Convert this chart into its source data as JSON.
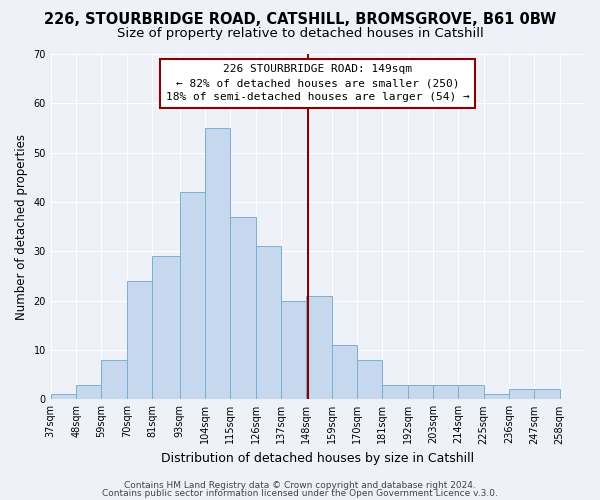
{
  "title": "226, STOURBRIDGE ROAD, CATSHILL, BROMSGROVE, B61 0BW",
  "subtitle": "Size of property relative to detached houses in Catshill",
  "xlabel": "Distribution of detached houses by size in Catshill",
  "ylabel": "Number of detached properties",
  "bin_labels": [
    "37sqm",
    "48sqm",
    "59sqm",
    "70sqm",
    "81sqm",
    "93sqm",
    "104sqm",
    "115sqm",
    "126sqm",
    "137sqm",
    "148sqm",
    "159sqm",
    "170sqm",
    "181sqm",
    "192sqm",
    "203sqm",
    "214sqm",
    "225sqm",
    "236sqm",
    "247sqm",
    "258sqm"
  ],
  "bin_edges": [
    37,
    48,
    59,
    70,
    81,
    93,
    104,
    115,
    126,
    137,
    148,
    159,
    170,
    181,
    192,
    203,
    214,
    225,
    236,
    247,
    258,
    269
  ],
  "counts": [
    1,
    3,
    8,
    24,
    29,
    42,
    55,
    37,
    31,
    20,
    21,
    11,
    8,
    3,
    3,
    3,
    3,
    1,
    2,
    2,
    0
  ],
  "bar_color": "#c5d8ed",
  "bar_edge_color": "#7aafd4",
  "vline_x": 148.5,
  "vline_color": "#8b0000",
  "annotation_line1": "226 STOURBRIDGE ROAD: 149sqm",
  "annotation_line2": "← 82% of detached houses are smaller (250)",
  "annotation_line3": "18% of semi-detached houses are larger (54) →",
  "annotation_box_color": "#8b0000",
  "ylim": [
    0,
    70
  ],
  "yticks": [
    0,
    10,
    20,
    30,
    40,
    50,
    60,
    70
  ],
  "footer1": "Contains HM Land Registry data © Crown copyright and database right 2024.",
  "footer2": "Contains public sector information licensed under the Open Government Licence v.3.0.",
  "bg_color": "#eef2f8",
  "grid_color": "#ffffff",
  "title_fontsize": 10.5,
  "subtitle_fontsize": 9.5,
  "xlabel_fontsize": 9,
  "ylabel_fontsize": 8.5,
  "tick_fontsize": 7,
  "annot_fontsize": 8,
  "footer_fontsize": 6.5
}
